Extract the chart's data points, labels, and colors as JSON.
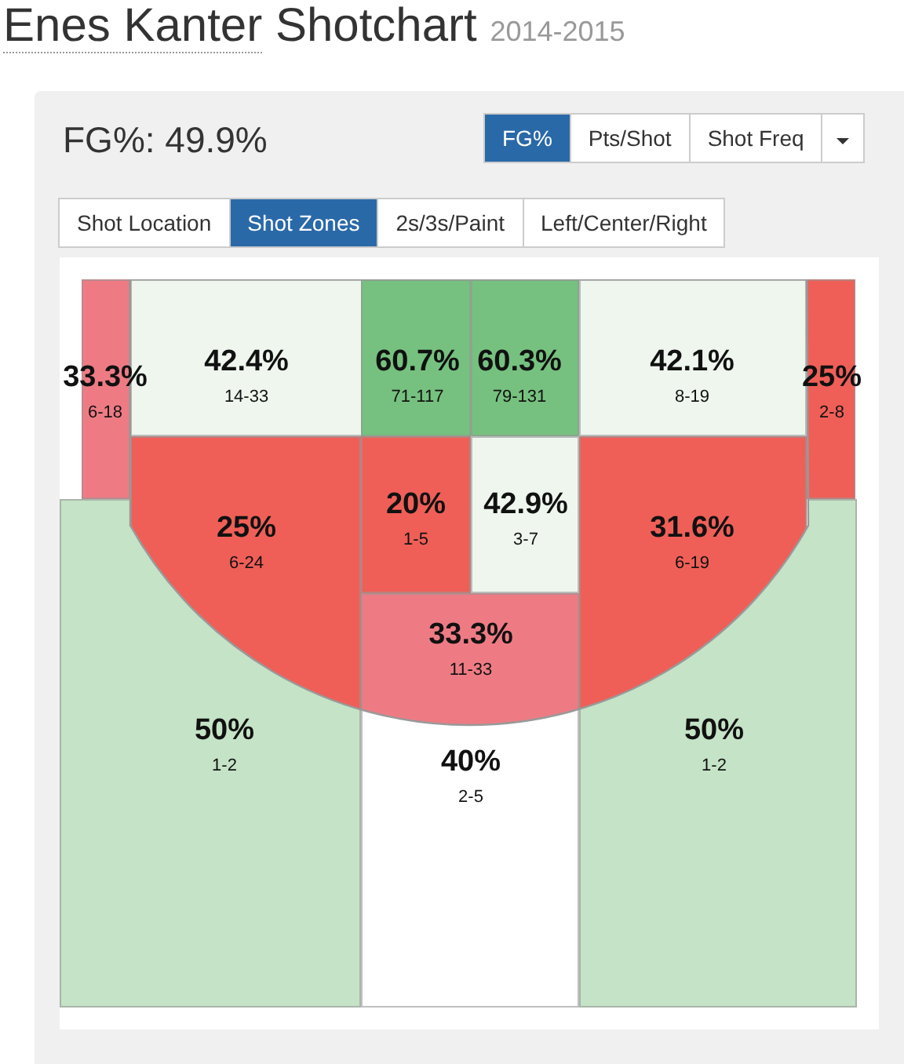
{
  "chart_data": {
    "type": "other",
    "title": "Enes Kanter",
    "subtitle": "Shotchart",
    "annotations": [
      "2014-2015",
      "FG%: 49.9%",
      "FG%",
      "Pts/Shot",
      "Shot Freq",
      "Shot Location",
      "Shot Zones",
      "2s/3s/Paint",
      "Left/Center/Right"
    ],
    "categories": [
      "6-18",
      "14-33",
      "71-117",
      "79-131",
      "8-19",
      "2-8",
      "6-24",
      "1-5",
      "3-7",
      "6-19",
      "11-33",
      "1-2",
      "2-5",
      "1-2"
    ],
    "values": [
      33.3,
      42.4,
      60.7,
      60.3,
      42.1,
      25,
      25,
      20,
      42.9,
      31.6,
      33.3,
      50,
      40,
      50
    ],
    "value_labels": [
      "33.3%",
      "42.4%",
      "60.7%",
      "60.3%",
      "42.1%",
      "25%",
      "25%",
      "20%",
      "42.9%",
      "31.6%",
      "33.3%",
      "50%",
      "40%",
      "50%"
    ],
    "colors": [
      "#ee7b84",
      "#eef6ee",
      "#76c17f",
      "#76c17f",
      "#eef6ee",
      "#ef5f57",
      "#ef5f57",
      "#ef5f57",
      "#eef6ee",
      "#ef5f57",
      "#ee7b84",
      "#c5e3c6",
      "#ffffff",
      "#c5e3c6"
    ]
  }
}
